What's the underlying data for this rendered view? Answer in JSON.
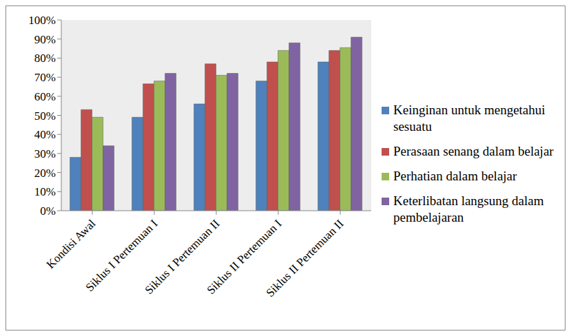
{
  "chart_data": {
    "type": "bar",
    "categories": [
      "Kondisi Awal",
      "Siklus I Pertemuan I",
      "Siklus I Pertemuan II",
      "Siklus II Pertemuan I",
      "Siklus II Pertemuan II"
    ],
    "series": [
      {
        "name": "Keinginan untuk mengetahui sesuatu",
        "color": "#4f81bd",
        "values": [
          28,
          49,
          56,
          68,
          78
        ]
      },
      {
        "name": "Perasaan senang dalam belajar",
        "color": "#c0504d",
        "values": [
          53,
          66.5,
          77,
          78,
          84
        ]
      },
      {
        "name": "Perhatian dalam belajar",
        "color": "#9bbb59",
        "values": [
          49,
          68,
          71,
          84,
          85.5
        ]
      },
      {
        "name": "Keterlibatan langsung dalam pembelajaran",
        "color": "#8064a2",
        "values": [
          34,
          72,
          72,
          88,
          91
        ]
      }
    ],
    "ylim": [
      0,
      100
    ],
    "yticks": [
      {
        "value": 0,
        "label": "0%"
      },
      {
        "value": 10,
        "label": "10%"
      },
      {
        "value": 20,
        "label": "20%"
      },
      {
        "value": 30,
        "label": "30%"
      },
      {
        "value": 40,
        "label": "40%"
      },
      {
        "value": 50,
        "label": "50%"
      },
      {
        "value": 60,
        "label": "60%"
      },
      {
        "value": 70,
        "label": "70%"
      },
      {
        "value": 80,
        "label": "80%"
      },
      {
        "value": 90,
        "label": "90%"
      },
      {
        "value": 100,
        "label": "100%"
      }
    ],
    "grid": false,
    "legend": "right"
  }
}
